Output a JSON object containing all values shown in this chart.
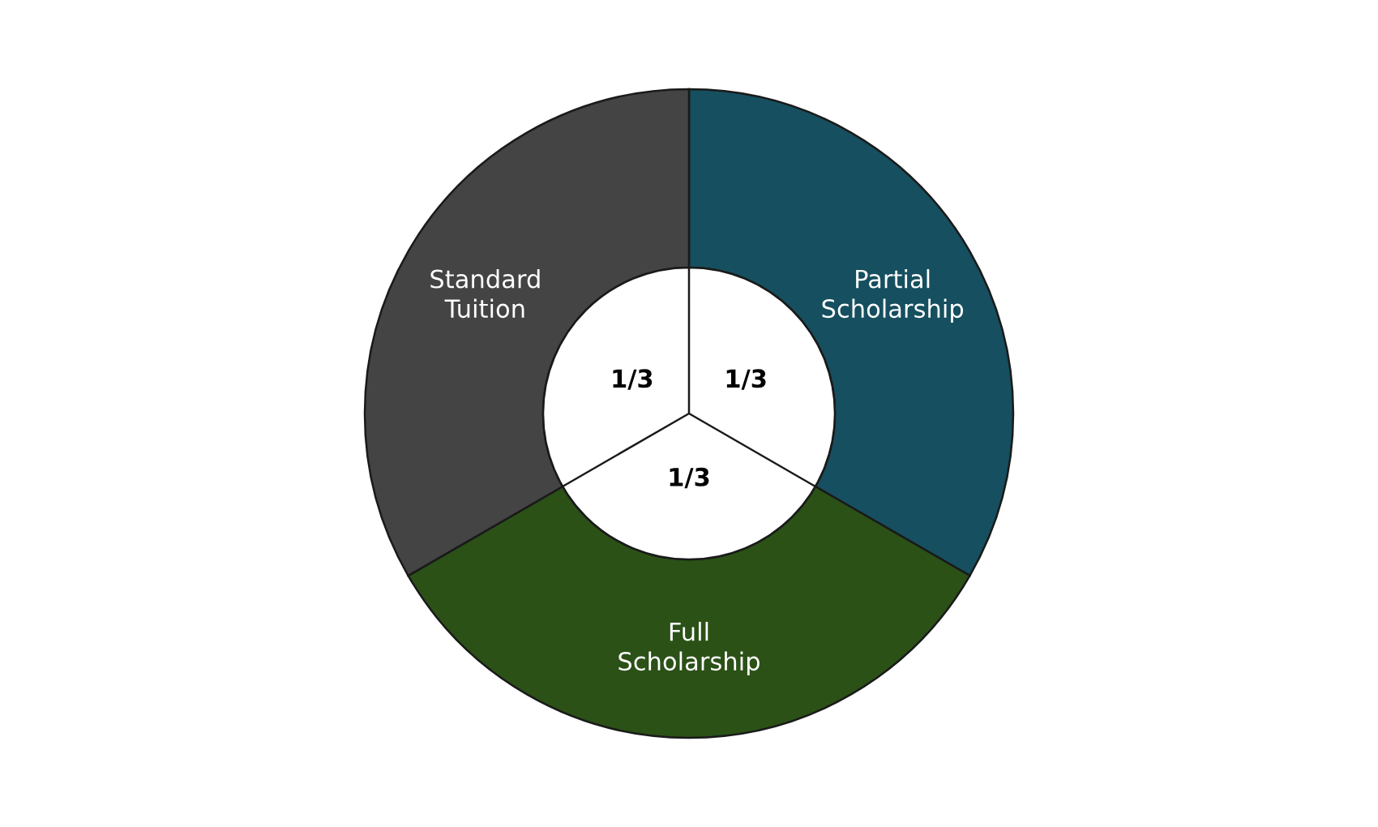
{
  "chart_data": {
    "type": "donut",
    "categories": [
      "Partial\nScholarship",
      "Full\nScholarship",
      "Standard\nTuition"
    ],
    "values": [
      0.3333,
      0.3333,
      0.3333
    ],
    "value_labels": [
      "1/3",
      "1/3",
      "1/3"
    ],
    "colors": [
      "#164f5f",
      "#2b5117",
      "#444444"
    ]
  }
}
